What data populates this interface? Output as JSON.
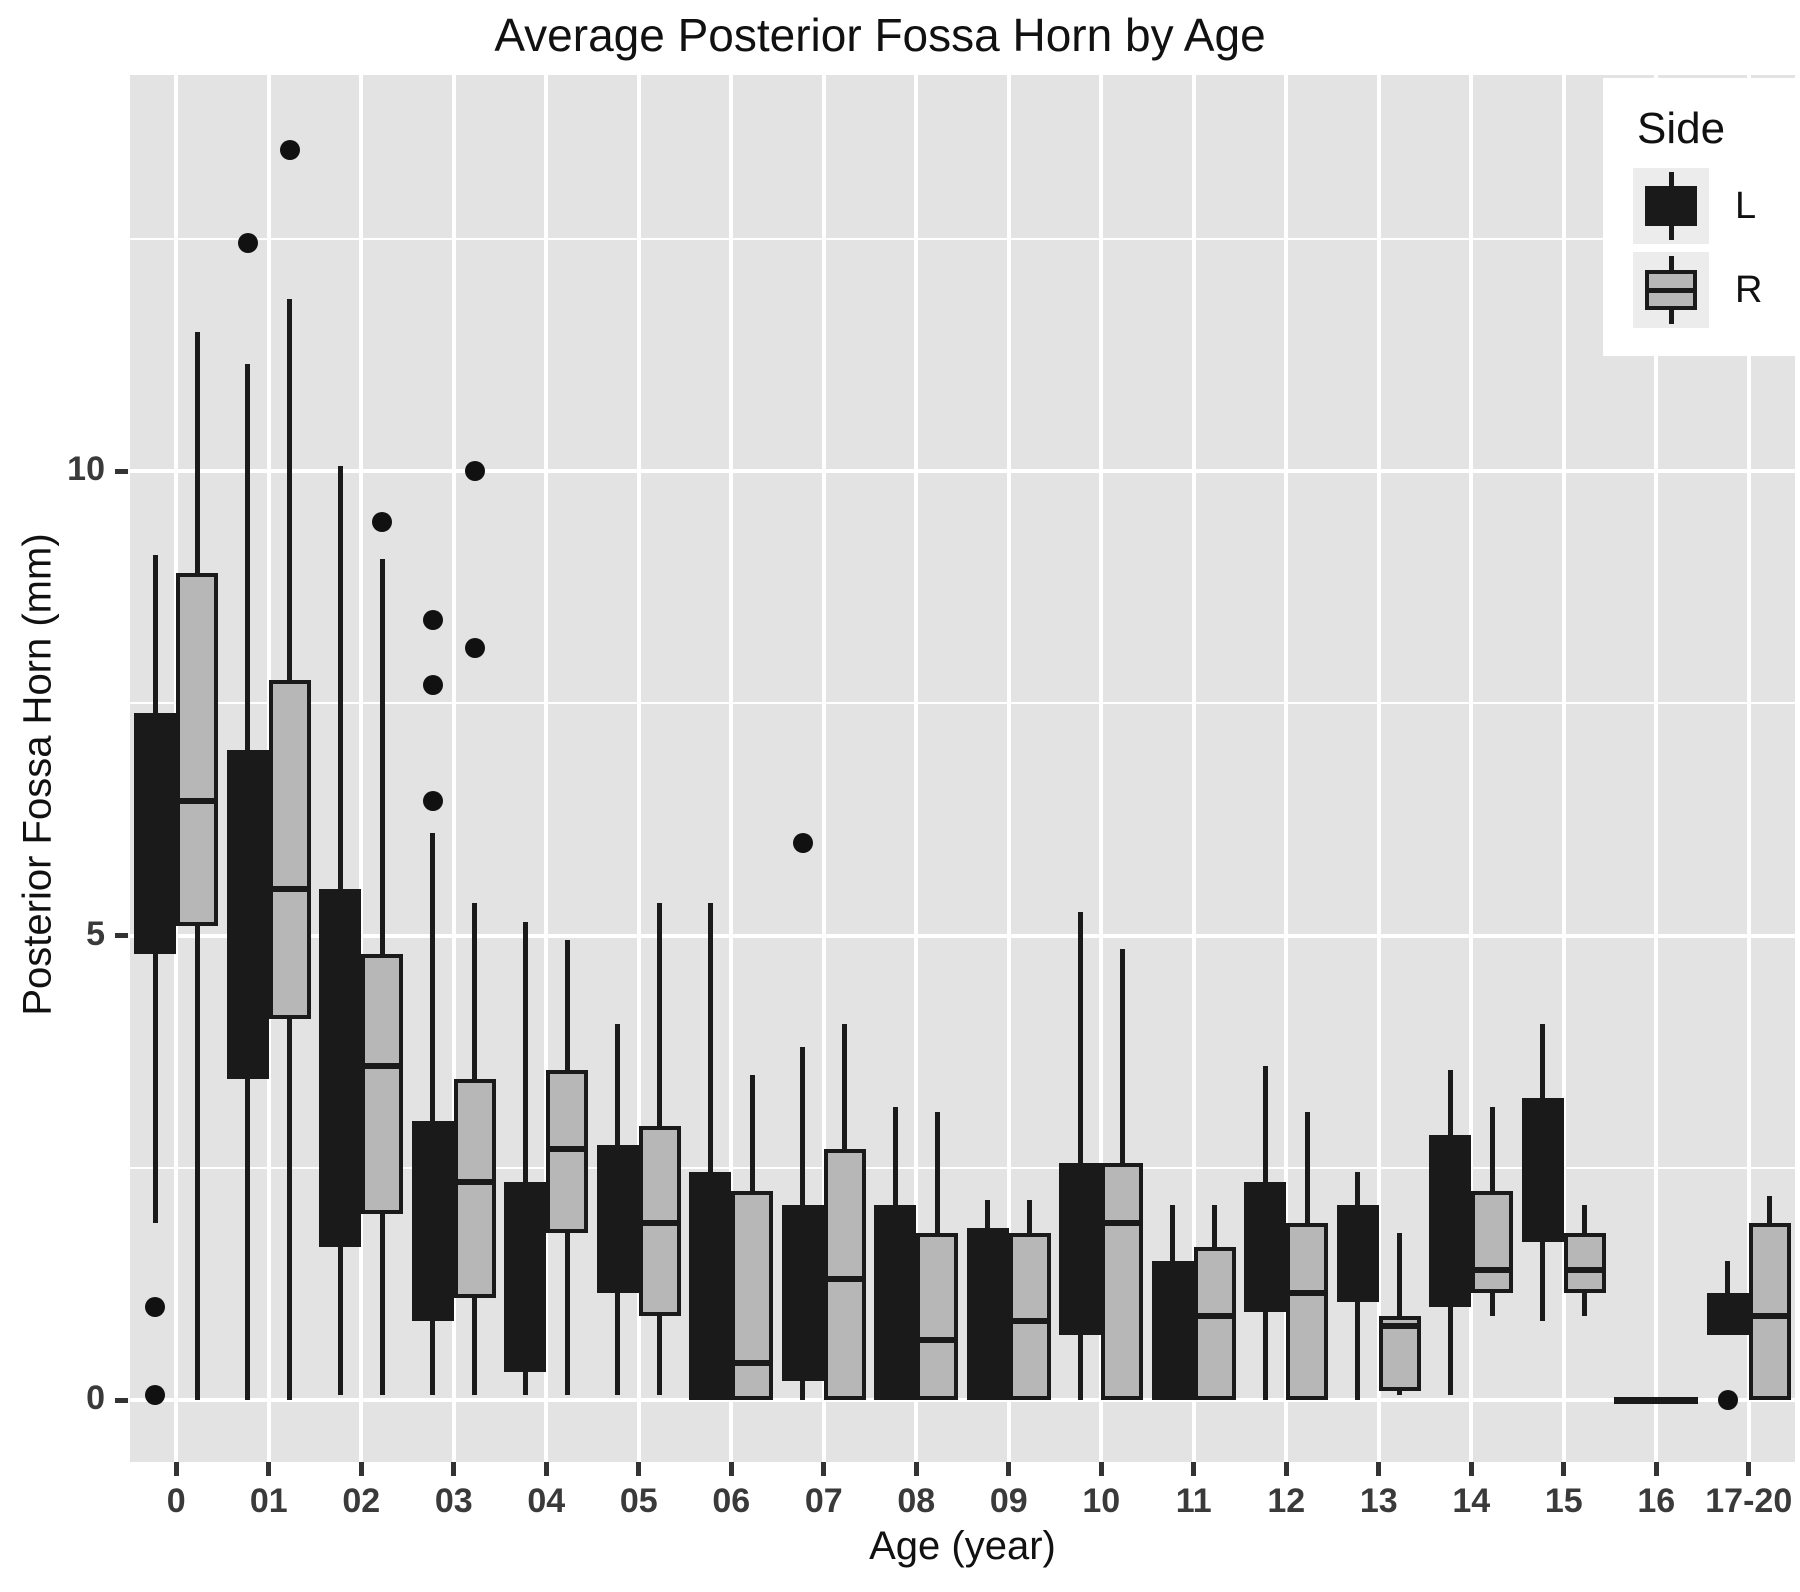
{
  "chart_data": {
    "type": "boxplot",
    "title": "Average Posterior Fossa Horn by Age",
    "xlabel": "Age (year)",
    "ylabel": "Posterior Fossa Horn (mm)",
    "categories": [
      "0",
      "01",
      "02",
      "03",
      "04",
      "05",
      "06",
      "07",
      "08",
      "09",
      "10",
      "11",
      "12",
      "13",
      "14",
      "15",
      "16",
      "17-20"
    ],
    "y_ticks": [
      {
        "value": 0,
        "label": "0"
      },
      {
        "value": 5,
        "label": "5"
      },
      {
        "value": 10,
        "label": "10"
      }
    ],
    "y_minor_gridlines": [
      2.5,
      7.5,
      12.5
    ],
    "ylim": [
      -0.67,
      14.26
    ],
    "grid": "white on gray panel, major + minor horizontal, major vertical per category",
    "legend": {
      "title": "Side",
      "position": "top-right-inside",
      "entries": [
        {
          "label": "L",
          "style": "black-filled-box"
        },
        {
          "label": "R",
          "style": "gray-box-black-border"
        }
      ]
    },
    "colors": {
      "panel": "#e3e3e3",
      "gridline": "#ffffff",
      "box_l_fill": "#1a1a1a",
      "box_r_fill": "#b7b7b7",
      "box_border": "#1a1a1a",
      "outlier": "#111111",
      "legend_bg": "#ffffff",
      "legend_key_bg": "#ececec"
    },
    "series": [
      {
        "name": "L",
        "boxes": [
          {
            "lo": 1.9,
            "q1": 4.8,
            "med": null,
            "q3": 7.4,
            "hi": 9.1,
            "outliers": [
              1.0,
              0.05
            ]
          },
          {
            "lo": 0,
            "q1": 3.45,
            "med": null,
            "q3": 7.0,
            "hi": 11.15,
            "outliers": [
              12.45
            ]
          },
          {
            "lo": 0.05,
            "q1": 1.65,
            "med": null,
            "q3": 5.5,
            "hi": 10.05,
            "outliers": []
          },
          {
            "lo": 0.05,
            "q1": 0.85,
            "med": null,
            "q3": 3.0,
            "hi": 6.1,
            "outliers": [
              8.4,
              7.7,
              6.45
            ]
          },
          {
            "lo": 0.05,
            "q1": 0.3,
            "med": null,
            "q3": 2.35,
            "hi": 5.15,
            "outliers": []
          },
          {
            "lo": 0.05,
            "q1": 1.15,
            "med": null,
            "q3": 2.75,
            "hi": 4.05,
            "outliers": []
          },
          {
            "lo": 0,
            "q1": 0,
            "med": null,
            "q3": 2.45,
            "hi": 5.35,
            "outliers": []
          },
          {
            "lo": 0,
            "q1": 0.2,
            "med": null,
            "q3": 2.1,
            "hi": 3.8,
            "outliers": [
              6.0
            ]
          },
          {
            "lo": 0,
            "q1": 0,
            "med": null,
            "q3": 2.1,
            "hi": 3.15,
            "outliers": []
          },
          {
            "lo": 0,
            "q1": 0,
            "med": null,
            "q3": 1.85,
            "hi": 2.15,
            "outliers": []
          },
          {
            "lo": 0,
            "q1": 0.7,
            "med": null,
            "q3": 2.55,
            "hi": 5.25,
            "outliers": []
          },
          {
            "lo": 0,
            "q1": 0,
            "med": null,
            "q3": 1.5,
            "hi": 2.1,
            "outliers": []
          },
          {
            "lo": 0,
            "q1": 0.95,
            "med": null,
            "q3": 2.35,
            "hi": 3.6,
            "outliers": []
          },
          {
            "lo": 0,
            "q1": 1.05,
            "med": null,
            "q3": 2.1,
            "hi": 2.45,
            "outliers": []
          },
          {
            "lo": 0.05,
            "q1": 1.0,
            "med": null,
            "q3": 2.85,
            "hi": 3.55,
            "outliers": []
          },
          {
            "lo": 0.85,
            "q1": 1.7,
            "med": null,
            "q3": 3.25,
            "hi": 4.05,
            "outliers": []
          },
          {
            "lo": 0,
            "q1": 0,
            "med": 0,
            "q3": 0,
            "hi": 0,
            "outliers": []
          },
          {
            "lo": 0.7,
            "q1": 0.7,
            "med": null,
            "q3": 1.15,
            "hi": 1.5,
            "outliers": [
              0.0
            ]
          }
        ]
      },
      {
        "name": "R",
        "boxes": [
          {
            "lo": 0,
            "q1": 5.1,
            "med": 6.45,
            "q3": 8.9,
            "hi": 11.5,
            "outliers": []
          },
          {
            "lo": 0,
            "q1": 4.1,
            "med": 5.5,
            "q3": 7.75,
            "hi": 11.85,
            "outliers": [
              13.45
            ]
          },
          {
            "lo": 0.05,
            "q1": 2.0,
            "med": 3.6,
            "q3": 4.8,
            "hi": 9.05,
            "outliers": [
              9.45
            ]
          },
          {
            "lo": 0.05,
            "q1": 1.1,
            "med": 2.35,
            "q3": 3.45,
            "hi": 5.35,
            "outliers": [
              10.0,
              8.1
            ]
          },
          {
            "lo": 0.05,
            "q1": 1.8,
            "med": 2.7,
            "q3": 3.55,
            "hi": 4.95,
            "outliers": []
          },
          {
            "lo": 0.05,
            "q1": 0.9,
            "med": 1.9,
            "q3": 2.95,
            "hi": 5.35,
            "outliers": []
          },
          {
            "lo": 0,
            "q1": 0,
            "med": 0.4,
            "q3": 2.25,
            "hi": 3.5,
            "outliers": []
          },
          {
            "lo": 0,
            "q1": 0,
            "med": 1.3,
            "q3": 2.7,
            "hi": 4.05,
            "outliers": []
          },
          {
            "lo": 0,
            "q1": 0,
            "med": 0.65,
            "q3": 1.8,
            "hi": 3.1,
            "outliers": []
          },
          {
            "lo": 0,
            "q1": 0,
            "med": 0.85,
            "q3": 1.8,
            "hi": 2.15,
            "outliers": []
          },
          {
            "lo": 0,
            "q1": 0,
            "med": 1.9,
            "q3": 2.55,
            "hi": 4.85,
            "outliers": []
          },
          {
            "lo": 0,
            "q1": 0,
            "med": 0.9,
            "q3": 1.65,
            "hi": 2.1,
            "outliers": []
          },
          {
            "lo": 0,
            "q1": 0,
            "med": 1.15,
            "q3": 1.9,
            "hi": 3.1,
            "outliers": []
          },
          {
            "lo": 0.05,
            "q1": 0.1,
            "med": 0.8,
            "q3": 0.9,
            "hi": 1.8,
            "outliers": []
          },
          {
            "lo": 0.9,
            "q1": 1.15,
            "med": 1.4,
            "q3": 2.25,
            "hi": 3.15,
            "outliers": []
          },
          {
            "lo": 0.9,
            "q1": 1.15,
            "med": 1.4,
            "q3": 1.8,
            "hi": 2.1,
            "outliers": []
          },
          {
            "lo": 0,
            "q1": 0,
            "med": 0,
            "q3": 0,
            "hi": 0,
            "outliers": []
          },
          {
            "lo": 0,
            "q1": 0,
            "med": 0.9,
            "q3": 1.9,
            "hi": 2.2,
            "outliers": []
          }
        ]
      }
    ]
  }
}
